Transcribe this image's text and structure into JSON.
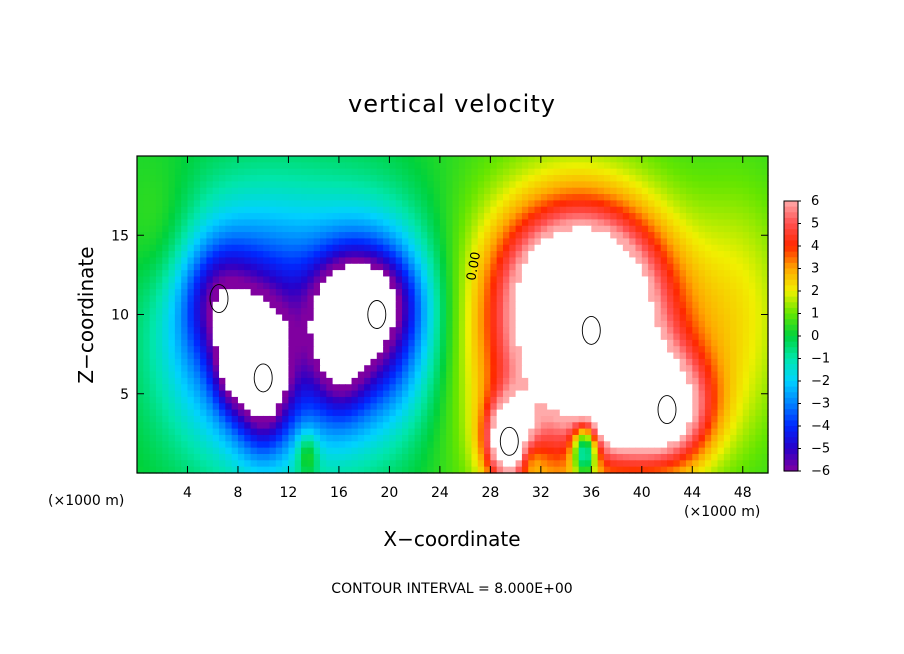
{
  "chart_data": {
    "type": "heatmap",
    "title": "vertical velocity",
    "xlabel": "X−coordinate",
    "ylabel": "Z−coordinate",
    "x_unit": "(×1000 m)",
    "x_unit_right": "(×1000 m)",
    "xlim": [
      0,
      50
    ],
    "ylim": [
      0,
      20
    ],
    "xticks": [
      4,
      8,
      12,
      16,
      20,
      24,
      28,
      32,
      36,
      40,
      44,
      48
    ],
    "yticks": [
      5,
      10,
      15
    ],
    "footer": "CONTOUR INTERVAL = 8.000E+00",
    "contour_label": "0.00",
    "colorbar": {
      "ticks": [
        "6",
        "5",
        "4",
        "3",
        "2",
        "1",
        "0",
        "−1",
        "−2",
        "−3",
        "−4",
        "−5",
        "−6"
      ],
      "min": -6,
      "max": 6
    },
    "features": [
      {
        "name": "downdraft-west-core",
        "x": 6.5,
        "z": 11,
        "value": -5.5
      },
      {
        "name": "downdraft-lower-left",
        "x": 10,
        "z": 6,
        "value": -7
      },
      {
        "name": "downdraft-central",
        "x": 19,
        "z": 10,
        "value": -7
      },
      {
        "name": "updraft-main",
        "x": 36,
        "z": 9,
        "value": 8
      },
      {
        "name": "updraft-lower-right",
        "x": 42,
        "z": 4,
        "value": 8
      },
      {
        "name": "updraft-small-left",
        "x": 29.5,
        "z": 2,
        "value": 7
      }
    ]
  }
}
